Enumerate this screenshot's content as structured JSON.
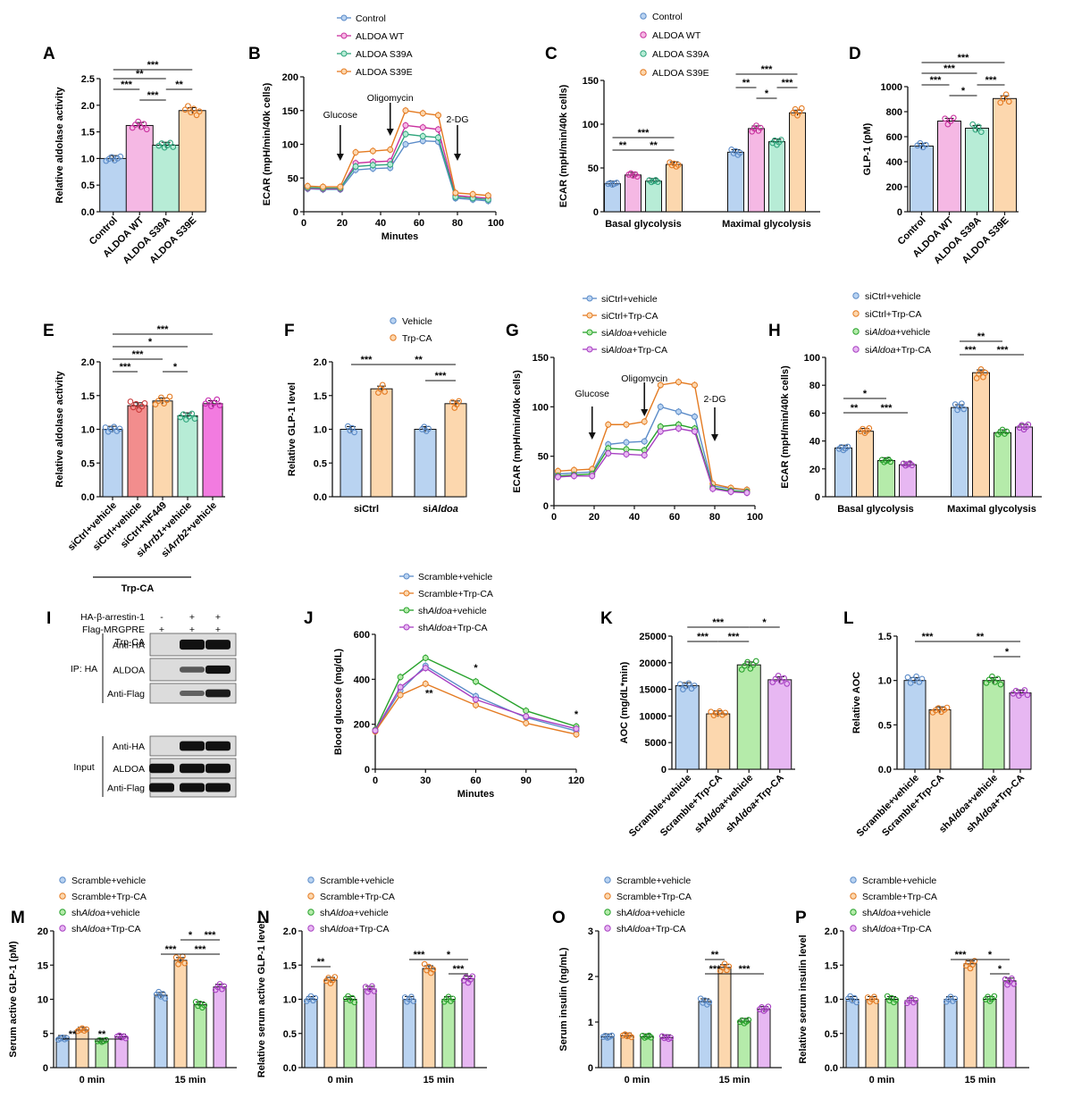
{
  "figure": {
    "colors": {
      "blue": "#b9d3f1",
      "blueD": "#5b8bc8",
      "pink": "#f5b8e4",
      "pinkD": "#c9319f",
      "green": "#b7ecd6",
      "greenD": "#2fa57c",
      "orange": "#fcd7ae",
      "orangeD": "#e47b22",
      "red": "#f28d8d",
      "redD": "#c83a3a",
      "green2": "#b5ebaa",
      "green2D": "#27a22b",
      "violet": "#e7b7f2",
      "violetD": "#a73fc2",
      "magenta": "#f27be0",
      "magentaD": "#c528ad"
    }
  },
  "chart_data": [
    {
      "panel": "A",
      "type": "bar",
      "ylabel": "Relative aldolase activity",
      "categories": [
        "Control",
        "ALDOA WT",
        "ALDOA S39A",
        "ALDOA S39E"
      ],
      "values": [
        1.0,
        1.62,
        1.25,
        1.9
      ],
      "ylim": [
        0,
        2.5
      ],
      "yticks": [
        "0.0",
        "0.5",
        "1.0",
        "1.5",
        "2.0",
        "2.5"
      ],
      "significance": [
        [
          "Control",
          "ALDOA WT",
          "***"
        ],
        [
          "ALDOA S39A",
          "ALDOA WT",
          "***"
        ],
        [
          "ALDOA S39A",
          "ALDOA S39E",
          "**"
        ],
        [
          "Control",
          "ALDOA S39A",
          "**"
        ],
        [
          "Control",
          "ALDOA S39E",
          "***"
        ]
      ]
    },
    {
      "panel": "B",
      "type": "line",
      "xlabel": "Minutes",
      "ylabel": "ECAR (mpH/min/40k cells)",
      "xlim": [
        0,
        100
      ],
      "ylim": [
        0,
        200
      ],
      "xticks": [
        "0",
        "20",
        "40",
        "60",
        "80",
        "100"
      ],
      "yticks": [
        "0",
        "50",
        "100",
        "150",
        "200"
      ],
      "x": [
        2,
        10,
        19,
        27,
        36,
        45,
        53,
        62,
        70,
        79,
        88,
        96
      ],
      "series": [
        {
          "name": "Control",
          "values": [
            34,
            33,
            33,
            62,
            64,
            65,
            100,
            105,
            104,
            20,
            18,
            16
          ]
        },
        {
          "name": "ALDOA WT",
          "values": [
            35,
            34,
            34,
            72,
            74,
            75,
            128,
            125,
            122,
            24,
            22,
            20
          ]
        },
        {
          "name": "ALDOA S39A",
          "values": [
            36,
            35,
            35,
            67,
            69,
            70,
            115,
            112,
            110,
            22,
            20,
            18
          ]
        },
        {
          "name": "ALDOA S39E",
          "values": [
            38,
            37,
            37,
            88,
            90,
            92,
            150,
            146,
            143,
            28,
            26,
            24
          ]
        }
      ],
      "annotations": [
        "Glucose",
        "Oligomycin",
        "2-DG"
      ]
    },
    {
      "panel": "C",
      "type": "bar",
      "ylabel": "ECAR (mpH/min/40k cells)",
      "categories": [
        "Basal glycolysis",
        "Maximal glycolysis"
      ],
      "ylim": [
        0,
        150
      ],
      "yticks": [
        "0",
        "50",
        "100",
        "150"
      ],
      "series": [
        {
          "name": "Control",
          "values": [
            32,
            68
          ]
        },
        {
          "name": "ALDOA WT",
          "values": [
            42,
            95
          ]
        },
        {
          "name": "ALDOA S39A",
          "values": [
            35,
            80
          ]
        },
        {
          "name": "ALDOA S39E",
          "values": [
            54,
            113
          ]
        }
      ],
      "significance": [
        "**",
        "**",
        "***",
        "***",
        "**",
        "*",
        "***"
      ]
    },
    {
      "panel": "D",
      "type": "bar",
      "ylabel": "GLP-1 (pM)",
      "categories": [
        "Control",
        "ALDOA WT",
        "ALDOA S39A",
        "ALDOA S39E"
      ],
      "values": [
        525,
        725,
        668,
        905
      ],
      "ylim": [
        0,
        1000
      ],
      "yticks": [
        "0",
        "200",
        "400",
        "600",
        "800",
        "1000"
      ],
      "significance": [
        "***",
        "*",
        "***",
        "***",
        "***"
      ]
    },
    {
      "panel": "E",
      "type": "bar",
      "ylabel": "Relative aldolase activity",
      "group_label": "Trp-CA",
      "categories": [
        "siCtrl+vehicle",
        "siCtrl+vehicle",
        "siCtrl+NF449",
        "siArrb1+vehicle",
        "siArrb2+vehicle"
      ],
      "values": [
        1.0,
        1.35,
        1.42,
        1.2,
        1.38
      ],
      "ylim": [
        0,
        2.0
      ],
      "yticks": [
        "0.0",
        "0.5",
        "1.0",
        "1.5",
        "2.0"
      ],
      "significance": [
        "***",
        "***",
        "*",
        "*",
        "***"
      ]
    },
    {
      "panel": "F",
      "type": "bar",
      "ylabel": "Relative GLP-1 level",
      "categories": [
        "siCtrl",
        "siAldoa"
      ],
      "ylim": [
        0,
        2.0
      ],
      "yticks": [
        "0.0",
        "0.5",
        "1.0",
        "1.5",
        "2.0"
      ],
      "series": [
        {
          "name": "Vehicle",
          "values": [
            1.0,
            1.0
          ]
        },
        {
          "name": "Trp-CA",
          "values": [
            1.6,
            1.38
          ]
        }
      ],
      "significance": [
        "***",
        "**",
        "***"
      ]
    },
    {
      "panel": "G",
      "type": "line",
      "ylabel": "ECAR (mpH/min/40k cells)",
      "xlim": [
        0,
        100
      ],
      "ylim": [
        0,
        150
      ],
      "xticks": [
        "0",
        "20",
        "40",
        "60",
        "80",
        "100"
      ],
      "yticks": [
        "0",
        "50",
        "100",
        "150"
      ],
      "x": [
        2,
        10,
        19,
        27,
        36,
        45,
        53,
        62,
        70,
        79,
        88,
        96
      ],
      "series": [
        {
          "name": "siCtrl+vehicle",
          "values": [
            32,
            33,
            34,
            62,
            64,
            65,
            100,
            95,
            90,
            20,
            17,
            16
          ]
        },
        {
          "name": "siCtrl+Trp-CA",
          "values": [
            35,
            36,
            37,
            82,
            82,
            85,
            122,
            125,
            122,
            22,
            18,
            16
          ]
        },
        {
          "name": "siAldoa+vehicle",
          "values": [
            30,
            31,
            32,
            58,
            57,
            56,
            80,
            82,
            78,
            18,
            15,
            14
          ]
        },
        {
          "name": "siAldoa+Trp-CA",
          "values": [
            29,
            30,
            30,
            53,
            52,
            51,
            75,
            78,
            75,
            17,
            14,
            13
          ]
        }
      ],
      "annotations": [
        "Glucose",
        "Oligomycin",
        "2-DG"
      ]
    },
    {
      "panel": "H",
      "type": "bar",
      "ylabel": "ECAR (mpH/min/40k cells)",
      "categories": [
        "Basal glycolysis",
        "Maximal glycolysis"
      ],
      "ylim": [
        0,
        100
      ],
      "yticks": [
        "0",
        "20",
        "40",
        "60",
        "80",
        "100"
      ],
      "series": [
        {
          "name": "siCtrl+vehicle",
          "values": [
            35,
            64
          ]
        },
        {
          "name": "siCtrl+Trp-CA",
          "values": [
            47,
            89
          ]
        },
        {
          "name": "siAldoa+vehicle",
          "values": [
            26,
            46
          ]
        },
        {
          "name": "siAldoa+Trp-CA",
          "values": [
            23,
            50
          ]
        }
      ],
      "significance": [
        "**",
        "*",
        "***",
        "***",
        "**",
        "***"
      ]
    },
    {
      "panel": "J",
      "type": "line",
      "xlabel": "Minutes",
      "ylabel": "Blood glucose (mg/dL)",
      "xlim": [
        0,
        120
      ],
      "ylim": [
        0,
        600
      ],
      "xticks": [
        "0",
        "30",
        "60",
        "90",
        "120"
      ],
      "yticks": [
        "0",
        "200",
        "400",
        "600"
      ],
      "x": [
        0,
        15,
        30,
        60,
        90,
        120
      ],
      "series": [
        {
          "name": "Scramble+vehicle",
          "values": [
            170,
            350,
            460,
            325,
            230,
            170
          ]
        },
        {
          "name": "Scramble+Trp-CA",
          "values": [
            168,
            330,
            380,
            285,
            205,
            155
          ]
        },
        {
          "name": "shAldoa+vehicle",
          "values": [
            175,
            410,
            495,
            390,
            260,
            190
          ]
        },
        {
          "name": "shAldoa+Trp-CA",
          "values": [
            172,
            365,
            450,
            310,
            235,
            180
          ]
        }
      ],
      "significance": [
        "**",
        "*",
        "*"
      ]
    },
    {
      "panel": "K",
      "type": "bar",
      "ylabel": "AOC (mg/dL*min)",
      "categories": [
        "Scramble+vehicle",
        "Scramble+Trp-CA",
        "shAldoa+vehicle",
        "shAldoa+Trp-CA"
      ],
      "values": [
        15700,
        10400,
        19600,
        16800
      ],
      "ylim": [
        0,
        25000
      ],
      "yticks": [
        "0",
        "5000",
        "10000",
        "15000",
        "20000",
        "25000"
      ],
      "significance": [
        "***",
        "***",
        "*",
        "***"
      ]
    },
    {
      "panel": "L",
      "type": "bar",
      "ylabel": "Relative AOC",
      "categories": [
        "Scramble+vehicle",
        "Scramble+Trp-CA",
        "shAldoa+vehicle",
        "shAldoa+Trp-CA"
      ],
      "values": [
        1.0,
        0.67,
        1.0,
        0.86
      ],
      "ylim": [
        0,
        1.5
      ],
      "yticks": [
        "0.0",
        "0.5",
        "1.0",
        "1.5"
      ],
      "significance": [
        "***",
        "**",
        "*"
      ]
    },
    {
      "panel": "M",
      "type": "bar",
      "ylabel": "Serum active GLP-1 (pM)",
      "categories": [
        "0 min",
        "15 min"
      ],
      "ylim": [
        0,
        20
      ],
      "yticks": [
        "0",
        "5",
        "10",
        "15",
        "20"
      ],
      "series": [
        {
          "name": "Scramble+vehicle",
          "values": [
            4.3,
            10.6
          ]
        },
        {
          "name": "Scramble+Trp-CA",
          "values": [
            5.5,
            15.7
          ]
        },
        {
          "name": "shAldoa+vehicle",
          "values": [
            3.9,
            9.2
          ]
        },
        {
          "name": "shAldoa+Trp-CA",
          "values": [
            4.5,
            11.8
          ]
        }
      ],
      "significance": [
        "**",
        "**",
        "***",
        "*",
        "***",
        "***"
      ]
    },
    {
      "panel": "N",
      "type": "bar",
      "ylabel": "Relative serum active GLP-1 level",
      "categories": [
        "0 min",
        "15 min"
      ],
      "ylim": [
        0,
        2.0
      ],
      "yticks": [
        "0.0",
        "0.5",
        "1.0",
        "1.5",
        "2.0"
      ],
      "series": [
        {
          "name": "Scramble+vehicle",
          "values": [
            1.0,
            1.0
          ]
        },
        {
          "name": "Scramble+Trp-CA",
          "values": [
            1.28,
            1.45
          ]
        },
        {
          "name": "shAldoa+vehicle",
          "values": [
            1.0,
            1.0
          ]
        },
        {
          "name": "shAldoa+Trp-CA",
          "values": [
            1.15,
            1.3
          ]
        }
      ],
      "significance": [
        "**",
        "***",
        "*",
        "***"
      ]
    },
    {
      "panel": "O",
      "type": "bar",
      "ylabel": "Serum insulin (ng/mL)",
      "categories": [
        "0 min",
        "15 min"
      ],
      "ylim": [
        0,
        3
      ],
      "yticks": [
        "0",
        "1",
        "2",
        "3"
      ],
      "series": [
        {
          "name": "Scramble+vehicle",
          "values": [
            0.68,
            1.45
          ]
        },
        {
          "name": "Scramble+Trp-CA",
          "values": [
            0.7,
            2.2
          ]
        },
        {
          "name": "shAldoa+vehicle",
          "values": [
            0.68,
            1.02
          ]
        },
        {
          "name": "shAldoa+Trp-CA",
          "values": [
            0.66,
            1.28
          ]
        }
      ],
      "significance": [
        "**",
        "***",
        "***"
      ]
    },
    {
      "panel": "P",
      "type": "bar",
      "ylabel": "Relative serum insulin level",
      "categories": [
        "0 min",
        "15 min"
      ],
      "ylim": [
        0,
        2.0
      ],
      "yticks": [
        "0.0",
        "0.5",
        "1.0",
        "1.5",
        "2.0"
      ],
      "series": [
        {
          "name": "Scramble+vehicle",
          "values": [
            1.0,
            1.0
          ]
        },
        {
          "name": "Scramble+Trp-CA",
          "values": [
            1.0,
            1.52
          ]
        },
        {
          "name": "shAldoa+vehicle",
          "values": [
            1.0,
            1.0
          ]
        },
        {
          "name": "shAldoa+Trp-CA",
          "values": [
            0.98,
            1.27
          ]
        }
      ],
      "significance": [
        "***",
        "*",
        "*"
      ]
    }
  ],
  "blot": {
    "panel": "I",
    "conditions": [
      {
        "label": "HA-β-arrestin-1",
        "marks": [
          "-",
          "+",
          "+"
        ]
      },
      {
        "label": "Flag-MRGPRE",
        "marks": [
          "+",
          "+",
          "+"
        ]
      },
      {
        "label": "Trp-CA",
        "marks": [
          "-",
          "-",
          "+"
        ]
      }
    ],
    "sections": [
      {
        "name": "IP: HA",
        "rows": [
          {
            "label": "Anti-HA",
            "bands": [
              0,
              0.9,
              0.85
            ]
          },
          {
            "label": "ALDOA",
            "bands": [
              0,
              0.3,
              0.65
            ]
          },
          {
            "label": "Anti-Flag",
            "bands": [
              0,
              0.25,
              0.6
            ]
          }
        ]
      },
      {
        "name": "Input",
        "rows": [
          {
            "label": "Anti-HA",
            "bands": [
              0,
              0.85,
              0.8
            ]
          },
          {
            "label": "ALDOA",
            "bands": [
              0.8,
              0.8,
              0.8
            ]
          },
          {
            "label": "Anti-Flag",
            "bands": [
              0.75,
              0.75,
              0.75
            ]
          }
        ]
      }
    ]
  }
}
